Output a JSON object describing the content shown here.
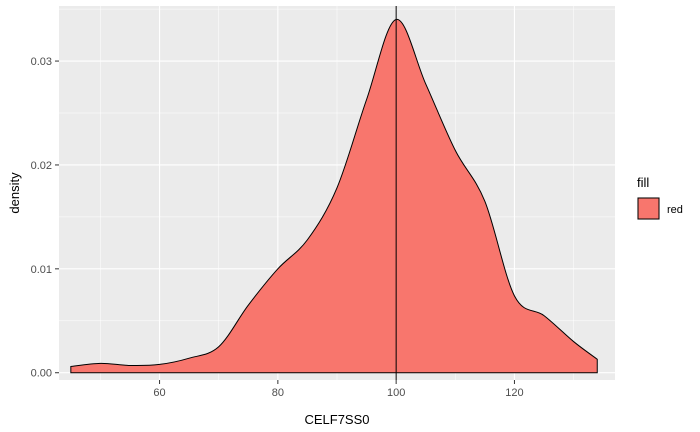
{
  "chart_data": {
    "type": "area",
    "xlabel": "CELF7SS0",
    "ylabel": "density",
    "xlim": [
      43,
      137
    ],
    "ylim": [
      -0.0007,
      0.0353
    ],
    "x_ticks": [
      60,
      80,
      100,
      120
    ],
    "y_ticks": [
      0.0,
      0.01,
      0.02,
      0.03
    ],
    "x_tick_labels": [
      "60",
      "80",
      "100",
      "120"
    ],
    "y_tick_labels": [
      "0.00",
      "0.01",
      "0.02",
      "0.03"
    ],
    "grid": true,
    "legend_position": "right",
    "vline_x": 100,
    "series": [
      {
        "name": "red",
        "color": "#F8766D",
        "x": [
          45,
          50,
          55,
          60,
          65,
          70,
          75,
          80,
          85,
          90,
          95,
          100,
          105,
          110,
          115,
          120,
          125,
          130,
          134
        ],
        "y": [
          0.0006,
          0.0009,
          0.0007,
          0.0008,
          0.0014,
          0.0025,
          0.0065,
          0.01,
          0.0128,
          0.0178,
          0.0263,
          0.034,
          0.0278,
          0.0214,
          0.0165,
          0.0074,
          0.0055,
          0.003,
          0.0013
        ]
      }
    ]
  },
  "legend": {
    "title": "fill",
    "items": [
      {
        "label": "red",
        "color": "#F8766D"
      }
    ]
  },
  "colors": {
    "panel_background": "#EBEBEB",
    "grid_major": "#FFFFFF",
    "fill": "#F8766D",
    "outline": "#000000"
  }
}
